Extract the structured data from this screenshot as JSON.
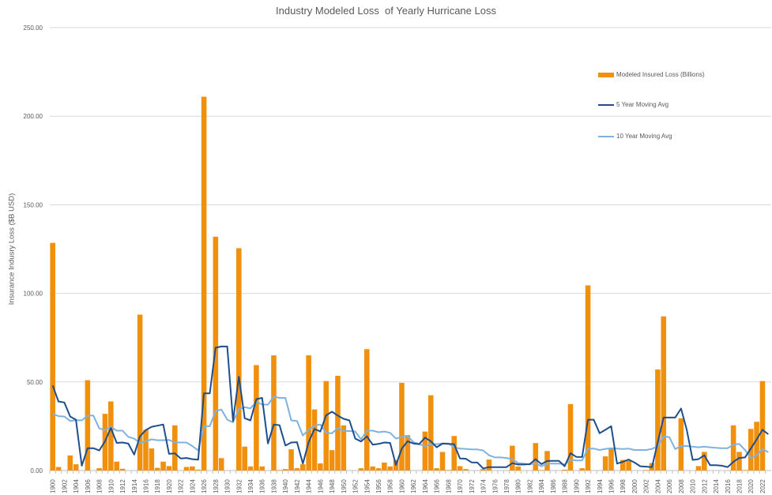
{
  "chart_data": {
    "type": "bar",
    "title": "Industry Modeled Loss  of Yearly Hurricane Loss",
    "xlabel": "",
    "ylabel": "Insurance Indusry Loss ($B USD)",
    "ylim": [
      0,
      250
    ],
    "yticks": [
      "0.00",
      "50.00",
      "100.00",
      "150.00",
      "200.00",
      "250.00"
    ],
    "grid": true,
    "legend_position": "right",
    "x_start": 1900,
    "x_end": 2023,
    "x_label_step": 2,
    "colors": {
      "bars": "#F0900C",
      "ma5": "#1F4E8C",
      "ma10": "#7FB2DE",
      "grid": "#D9D9D9",
      "text": "#595959"
    },
    "series": [
      {
        "name": "Modeled Insured Loss (Billions)",
        "kind": "bar",
        "values": [
          128.5,
          2,
          0,
          8.5,
          3.5,
          0,
          51,
          0,
          1.3,
          32,
          39,
          5,
          1,
          0,
          0,
          88,
          23,
          12.5,
          1.5,
          5,
          2.5,
          25.5,
          0,
          2,
          2.3,
          0.5,
          211,
          0,
          132,
          7,
          0,
          0,
          125.5,
          13.5,
          2.3,
          59.5,
          2.3,
          0,
          65,
          0.3,
          0.8,
          12,
          1.3,
          3.5,
          65,
          34.5,
          4,
          50.5,
          11.5,
          53.5,
          25.5,
          0,
          0,
          1.3,
          68.5,
          2.3,
          1.3,
          4.5,
          2.3,
          6,
          49.5,
          20,
          0,
          0,
          22,
          42.5,
          1.3,
          10.5,
          0.3,
          19.5,
          2.5,
          0.8,
          0,
          0,
          0.8,
          6.2,
          0,
          0,
          0,
          14,
          2.3,
          0,
          0,
          15.5,
          0.3,
          11,
          0,
          0,
          0.5,
          37.5,
          0,
          1.3,
          104.5,
          0,
          0,
          8,
          12.5,
          0,
          6,
          5.5,
          0,
          0,
          0.3,
          4.2,
          57,
          87,
          0,
          0,
          29.5,
          0,
          0,
          2.5,
          10.5,
          0,
          0,
          0,
          0,
          25.5,
          10.5,
          0.3,
          23.5,
          27.5,
          50.5,
          0
        ]
      },
      {
        "name": "5 Year Moving Avg",
        "kind": "line",
        "values": [
          48,
          39,
          38.4,
          30.5,
          28.7,
          2.7,
          12.6,
          12.6,
          11.3,
          16.5,
          24,
          15.6,
          15.8,
          15.2,
          9,
          19.3,
          22.8,
          24.7,
          25.3,
          26,
          9.4,
          9.7,
          6.8,
          7.1,
          6.4,
          6.1,
          43.6,
          43.6,
          69.3,
          70,
          70,
          28,
          53,
          29.5,
          28.3,
          40.3,
          41,
          15.3,
          26,
          25.6,
          14.1,
          15.8,
          16,
          3.9,
          16,
          23.5,
          22,
          31.2,
          33.2,
          31,
          29.2,
          28.3,
          18,
          16.4,
          19.3,
          14.6,
          15,
          15.8,
          15.6,
          3.1,
          12.4,
          16.5,
          15.3,
          14.9,
          18.6,
          16.5,
          13.1,
          15.2,
          15,
          14.9,
          6.8,
          6.7,
          4.6,
          4.5,
          1.2,
          1.9,
          1.9,
          1.9,
          1.9,
          4.2,
          3.4,
          3.4,
          3.6,
          6.4,
          3.6,
          5.4,
          5.5,
          5.5,
          2.4,
          9.8,
          7.7,
          7.6,
          28.7,
          28.7,
          21.1,
          23,
          25,
          3.9,
          4.9,
          6.2,
          4.5,
          2.4,
          2.2,
          1.9,
          16,
          29.9,
          29.9,
          29.9,
          35,
          22.8,
          6,
          6.4,
          8.6,
          3,
          3,
          2.7,
          1.9,
          4.9,
          7.1,
          7.4,
          12.4,
          17.6,
          23,
          20.5
        ]
      },
      {
        "name": "10 Year Moving Avg",
        "kind": "line",
        "values": [
          32,
          30.7,
          30.5,
          28,
          28.4,
          28.3,
          31,
          31,
          23.8,
          22.8,
          24.7,
          22.5,
          22.5,
          19,
          18,
          15.6,
          16.5,
          17.6,
          17.1,
          17.1,
          17.3,
          15.8,
          15.8,
          15.8,
          13.8,
          11.3,
          25,
          25,
          33.6,
          34.4,
          28.7,
          27.2,
          34.7,
          35.7,
          35.1,
          38.8,
          37.2,
          37.2,
          41.7,
          41,
          41,
          28.3,
          28,
          19.8,
          23,
          25.4,
          26,
          21.3,
          21,
          24,
          22.3,
          22.3,
          22,
          17.6,
          22.5,
          22.5,
          21.6,
          22,
          21.3,
          18,
          19,
          19.5,
          16,
          15,
          13.7,
          14.9,
          14.9,
          15.3,
          15.3,
          13.1,
          12.4,
          12.2,
          11.9,
          11.9,
          11.3,
          8.6,
          7.4,
          7.4,
          7.1,
          6.4,
          4.2,
          3.9,
          3.4,
          4.2,
          2.4,
          3.9,
          3.9,
          3.9,
          3.4,
          6.1,
          5.7,
          5.7,
          12.4,
          12.4,
          11.6,
          12.2,
          12.6,
          12.4,
          12.1,
          12.4,
          11.6,
          11.6,
          11.6,
          12.2,
          13.8,
          19.3,
          18.8,
          12.1,
          13.8,
          13.8,
          13.5,
          13.1,
          13.5,
          13.1,
          12.8,
          12.6,
          12.6,
          14.6,
          15,
          11.6,
          7.1,
          8.6,
          12.1,
          10.4
        ]
      }
    ]
  }
}
